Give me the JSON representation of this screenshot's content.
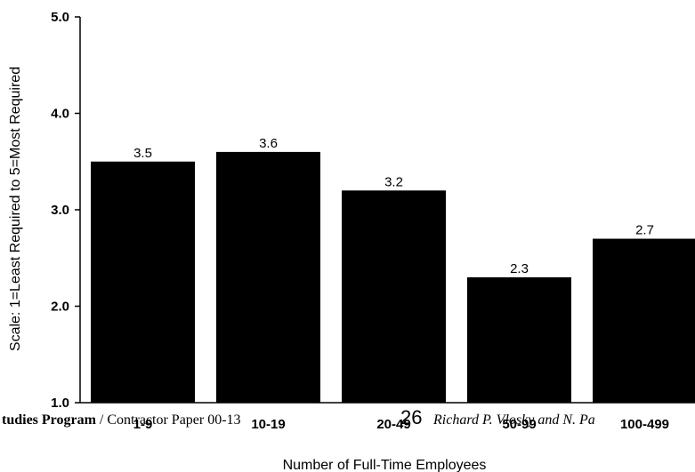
{
  "chart_data": {
    "type": "bar",
    "categories": [
      "1-9",
      "10-19",
      "20-49",
      "50-99",
      "100-499"
    ],
    "values": [
      3.5,
      3.6,
      3.2,
      2.3,
      2.7
    ],
    "data_labels": [
      "3.5",
      "3.6",
      "3.2",
      "2.3",
      "2.7"
    ],
    "ylim": [
      1.0,
      5.0
    ],
    "yticks": [
      "1.0",
      "2.0",
      "3.0",
      "4.0",
      "5.0"
    ],
    "xlabel": "Number of Full-Time Employees",
    "ylabel": "Scale: 1=Least Required to 5=Most Required",
    "bar_color": "#000000",
    "grid": false
  },
  "footer": {
    "left": "tudies Program",
    "left_sep": " / ",
    "paper": "Contractor Paper  00-13",
    "page_number": "26",
    "authors": "Richard P. Vlosky and N. Pa"
  }
}
